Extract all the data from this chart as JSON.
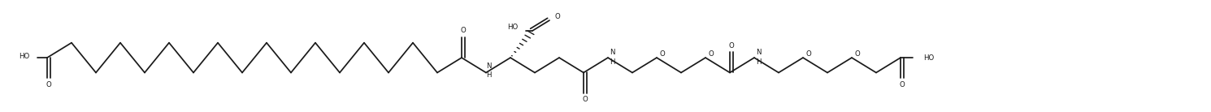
{
  "figsize": [
    14.9,
    1.38
  ],
  "dpi": 100,
  "bg": "#ffffff",
  "lc": "#1a1a1a",
  "lw": 1.25,
  "fs": 6.2,
  "xlim": [
    0,
    1490
  ],
  "ylim": [
    -55,
    110
  ]
}
